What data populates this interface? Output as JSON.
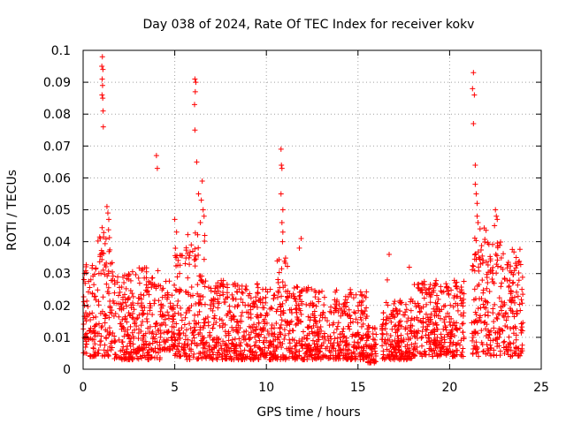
{
  "chart_data": {
    "type": "scatter",
    "title": "Day 038 of 2024, Rate Of TEC Index for receiver kokv",
    "xlabel": "GPS time / hours",
    "ylabel": "ROTI / TECUs",
    "xlim": [
      0,
      25
    ],
    "ylim": [
      0,
      0.1
    ],
    "xticks": [
      0,
      5,
      10,
      15,
      20,
      25
    ],
    "xtick_labels": [
      "0",
      "5",
      "10",
      "15",
      "20",
      "25"
    ],
    "yticks": [
      0,
      0.01,
      0.02,
      0.03,
      0.04,
      0.05,
      0.06,
      0.07,
      0.08,
      0.09,
      0.1
    ],
    "ytick_labels": [
      "0",
      "0.01",
      "0.02",
      "0.03",
      "0.04",
      "0.05",
      "0.06",
      "0.07",
      "0.08",
      "0.09",
      "0.1"
    ],
    "grid": true,
    "marker": "+",
    "color": "#ff0000",
    "series": [
      {
        "name": "ROTI",
        "bands": [
          {
            "from": 0.0,
            "to": 0.8,
            "min": 0.004,
            "max": 0.033
          },
          {
            "from": 0.8,
            "to": 1.6,
            "min": 0.004,
            "max": 0.045
          },
          {
            "from": 1.6,
            "to": 2.6,
            "min": 0.003,
            "max": 0.03
          },
          {
            "from": 2.6,
            "to": 4.2,
            "min": 0.003,
            "max": 0.032
          },
          {
            "from": 4.2,
            "to": 5.0,
            "min": 0.006,
            "max": 0.028
          },
          {
            "from": 5.0,
            "to": 5.6,
            "min": 0.004,
            "max": 0.04
          },
          {
            "from": 5.6,
            "to": 6.8,
            "min": 0.003,
            "max": 0.045
          },
          {
            "from": 6.8,
            "to": 8.0,
            "min": 0.003,
            "max": 0.028
          },
          {
            "from": 8.0,
            "to": 10.5,
            "min": 0.003,
            "max": 0.027
          },
          {
            "from": 10.5,
            "to": 11.2,
            "min": 0.003,
            "max": 0.035
          },
          {
            "from": 11.2,
            "to": 12.5,
            "min": 0.003,
            "max": 0.026
          },
          {
            "from": 12.5,
            "to": 15.5,
            "min": 0.003,
            "max": 0.025
          },
          {
            "from": 15.5,
            "to": 16.0,
            "min": 0.002,
            "max": 0.014
          },
          {
            "from": 16.3,
            "to": 18.0,
            "min": 0.003,
            "max": 0.022
          },
          {
            "from": 18.0,
            "to": 20.8,
            "min": 0.004,
            "max": 0.028
          },
          {
            "from": 21.2,
            "to": 22.0,
            "min": 0.004,
            "max": 0.045
          },
          {
            "from": 22.0,
            "to": 22.8,
            "min": 0.004,
            "max": 0.04
          },
          {
            "from": 22.8,
            "to": 24.0,
            "min": 0.004,
            "max": 0.038
          }
        ],
        "spikes": [
          {
            "x": 1.05,
            "y": 0.098
          },
          {
            "x": 1.02,
            "y": 0.095
          },
          {
            "x": 1.08,
            "y": 0.094
          },
          {
            "x": 1.04,
            "y": 0.091
          },
          {
            "x": 1.06,
            "y": 0.089
          },
          {
            "x": 1.03,
            "y": 0.086
          },
          {
            "x": 1.07,
            "y": 0.085
          },
          {
            "x": 1.09,
            "y": 0.081
          },
          {
            "x": 1.1,
            "y": 0.076
          },
          {
            "x": 1.3,
            "y": 0.051
          },
          {
            "x": 1.35,
            "y": 0.049
          },
          {
            "x": 1.4,
            "y": 0.047
          },
          {
            "x": 4.0,
            "y": 0.067
          },
          {
            "x": 4.05,
            "y": 0.063
          },
          {
            "x": 6.1,
            "y": 0.091
          },
          {
            "x": 6.15,
            "y": 0.09
          },
          {
            "x": 6.12,
            "y": 0.087
          },
          {
            "x": 6.08,
            "y": 0.083
          },
          {
            "x": 6.1,
            "y": 0.075
          },
          {
            "x": 6.2,
            "y": 0.065
          },
          {
            "x": 6.5,
            "y": 0.059
          },
          {
            "x": 6.3,
            "y": 0.055
          },
          {
            "x": 6.45,
            "y": 0.053
          },
          {
            "x": 6.55,
            "y": 0.05
          },
          {
            "x": 6.6,
            "y": 0.048
          },
          {
            "x": 6.4,
            "y": 0.046
          },
          {
            "x": 5.0,
            "y": 0.047
          },
          {
            "x": 5.1,
            "y": 0.043
          },
          {
            "x": 10.8,
            "y": 0.069
          },
          {
            "x": 10.82,
            "y": 0.064
          },
          {
            "x": 10.85,
            "y": 0.063
          },
          {
            "x": 10.8,
            "y": 0.055
          },
          {
            "x": 10.9,
            "y": 0.05
          },
          {
            "x": 10.85,
            "y": 0.046
          },
          {
            "x": 10.9,
            "y": 0.043
          },
          {
            "x": 10.88,
            "y": 0.04
          },
          {
            "x": 11.9,
            "y": 0.041
          },
          {
            "x": 11.8,
            "y": 0.038
          },
          {
            "x": 16.7,
            "y": 0.036
          },
          {
            "x": 16.6,
            "y": 0.028
          },
          {
            "x": 17.8,
            "y": 0.032
          },
          {
            "x": 21.3,
            "y": 0.093
          },
          {
            "x": 21.25,
            "y": 0.088
          },
          {
            "x": 21.35,
            "y": 0.086
          },
          {
            "x": 21.3,
            "y": 0.077
          },
          {
            "x": 21.4,
            "y": 0.064
          },
          {
            "x": 21.4,
            "y": 0.058
          },
          {
            "x": 21.45,
            "y": 0.055
          },
          {
            "x": 21.5,
            "y": 0.052
          },
          {
            "x": 21.5,
            "y": 0.048
          },
          {
            "x": 21.55,
            "y": 0.046
          },
          {
            "x": 22.5,
            "y": 0.05
          },
          {
            "x": 22.55,
            "y": 0.048
          },
          {
            "x": 22.6,
            "y": 0.047
          },
          {
            "x": 22.45,
            "y": 0.045
          }
        ]
      }
    ]
  }
}
